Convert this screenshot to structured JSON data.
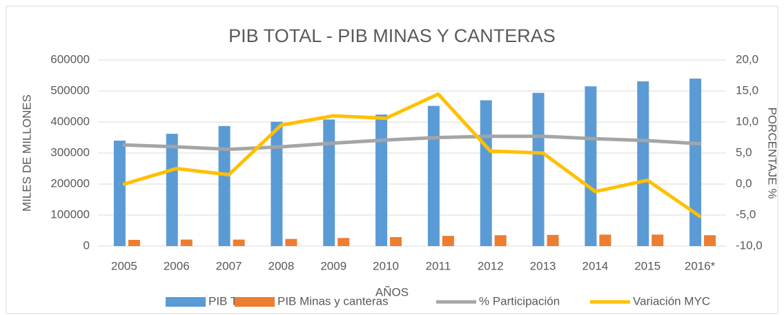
{
  "chart_data": {
    "type": "bar-line",
    "title": "PIB TOTAL - PIB MINAS Y CANTERAS",
    "x_label": "AÑOS",
    "y_label": "MILES DE MILLONES",
    "y2_label": "PORCENTAJE %",
    "categories": [
      "2005",
      "2006",
      "2007",
      "2008",
      "2009",
      "2010",
      "2011",
      "2012",
      "2013",
      "2014",
      "2015",
      "2016*"
    ],
    "series": [
      {
        "name": "PIB TOTAL",
        "type": "bar",
        "color": "#5b9bd5",
        "values": [
          340000,
          362000,
          387000,
          401000,
          408000,
          424000,
          452000,
          470000,
          494000,
          515000,
          531000,
          540000
        ]
      },
      {
        "name": "PIB Minas y canteras",
        "type": "bar",
        "color": "#ed7d31",
        "values": [
          20000,
          21000,
          21000,
          23000,
          26000,
          29000,
          33000,
          35000,
          36000,
          37000,
          37000,
          35000
        ]
      },
      {
        "name": "% Participación",
        "type": "line",
        "axis": "y2",
        "color": "#a5a5a5",
        "values": [
          6.3,
          6.0,
          5.6,
          6.0,
          6.6,
          7.1,
          7.5,
          7.7,
          7.7,
          7.3,
          7.0,
          6.5
        ]
      },
      {
        "name": "Variación MYC",
        "type": "line",
        "axis": "y2",
        "color": "#ffc000",
        "values": [
          0.0,
          2.5,
          1.5,
          9.5,
          11.0,
          10.6,
          14.5,
          5.3,
          5.0,
          -1.2,
          0.6,
          -5.2
        ]
      }
    ],
    "ylim": [
      0,
      600000
    ],
    "yticks": [
      0,
      100000,
      200000,
      300000,
      400000,
      500000,
      600000
    ],
    "y2lim": [
      -10,
      20
    ],
    "y2ticks": [
      {
        "value": -10,
        "label": "-10,0"
      },
      {
        "value": -5,
        "label": "-5,0"
      },
      {
        "value": 0,
        "label": "0,0"
      },
      {
        "value": 5,
        "label": "5,0"
      },
      {
        "value": 10,
        "label": "10,0"
      },
      {
        "value": 15,
        "label": "15,0"
      },
      {
        "value": 20,
        "label": "20,0"
      }
    ],
    "grid": true,
    "legend": "bottom"
  }
}
